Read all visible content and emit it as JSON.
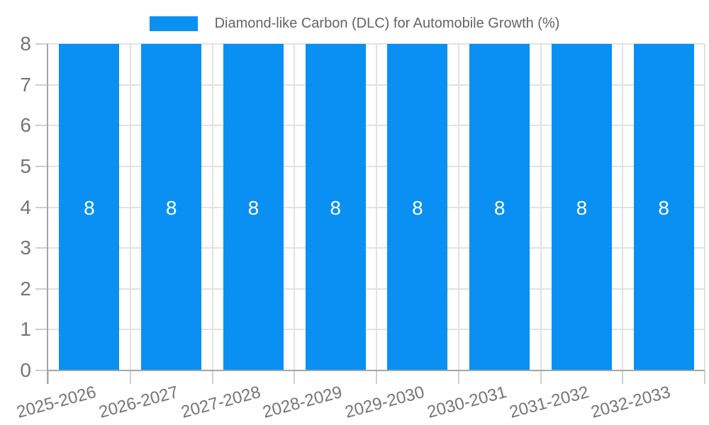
{
  "legend": {
    "label": "Diamond-like Carbon (DLC) for Automobile Growth (%)",
    "position": "top"
  },
  "chart_data": {
    "type": "bar",
    "title": "",
    "xlabel": "",
    "ylabel": "",
    "categories": [
      "2025-2026",
      "2026-2027",
      "2027-2028",
      "2028-2029",
      "2029-2030",
      "2030-2031",
      "2031-2032",
      "2032-2033"
    ],
    "series": [
      {
        "name": "Diamond-like Carbon (DLC) for Automobile Growth (%)",
        "values": [
          8,
          8,
          8,
          8,
          8,
          8,
          8,
          8
        ],
        "color": "#0a90f2"
      }
    ],
    "value_labels": [
      "8",
      "8",
      "8",
      "8",
      "8",
      "8",
      "8",
      "8"
    ],
    "ylim": [
      0,
      8
    ],
    "yticks": [
      0,
      1,
      2,
      3,
      4,
      5,
      6,
      7,
      8
    ],
    "grid": true,
    "legend_position": "top",
    "x_label_rotation_deg": -15
  },
  "colors": {
    "bar": "#0a90f2",
    "axis": "#a6a6a6",
    "gridline": "#e2e2e2",
    "tick_mark": "#cfcfcf",
    "tick_label": "#757575",
    "legend_text": "#646464",
    "value_label": "#ffffff",
    "background": "#ffffff"
  }
}
